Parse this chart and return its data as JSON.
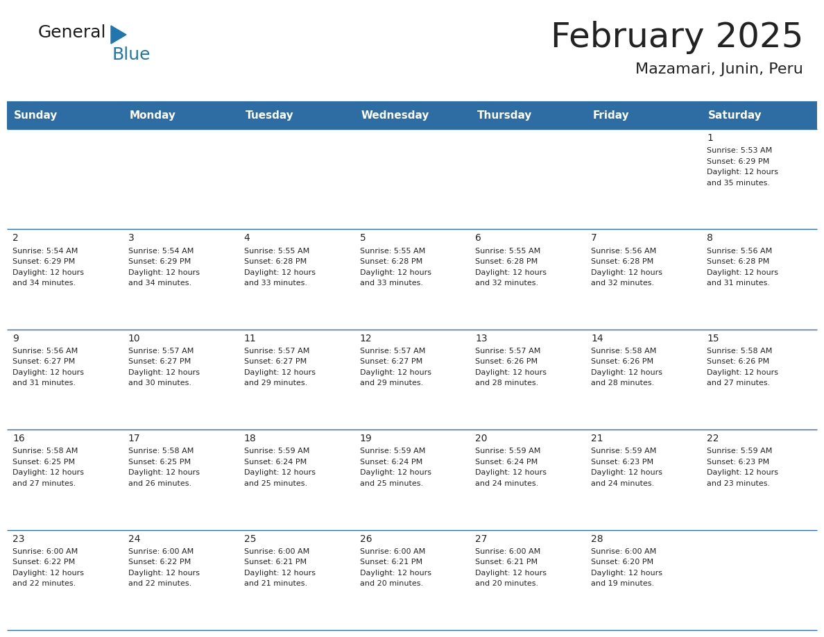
{
  "title": "February 2025",
  "subtitle": "Mazamari, Junin, Peru",
  "header_bg": "#2E6DA4",
  "header_text_color": "#FFFFFF",
  "border_color": "#2E6DA4",
  "day_headers": [
    "Sunday",
    "Monday",
    "Tuesday",
    "Wednesday",
    "Thursday",
    "Friday",
    "Saturday"
  ],
  "days": [
    {
      "day": 1,
      "col": 6,
      "row": 0,
      "sunrise": "5:53 AM",
      "sunset": "6:29 PM",
      "daylight": "12 hours and 35 minutes."
    },
    {
      "day": 2,
      "col": 0,
      "row": 1,
      "sunrise": "5:54 AM",
      "sunset": "6:29 PM",
      "daylight": "12 hours and 34 minutes."
    },
    {
      "day": 3,
      "col": 1,
      "row": 1,
      "sunrise": "5:54 AM",
      "sunset": "6:29 PM",
      "daylight": "12 hours and 34 minutes."
    },
    {
      "day": 4,
      "col": 2,
      "row": 1,
      "sunrise": "5:55 AM",
      "sunset": "6:28 PM",
      "daylight": "12 hours and 33 minutes."
    },
    {
      "day": 5,
      "col": 3,
      "row": 1,
      "sunrise": "5:55 AM",
      "sunset": "6:28 PM",
      "daylight": "12 hours and 33 minutes."
    },
    {
      "day": 6,
      "col": 4,
      "row": 1,
      "sunrise": "5:55 AM",
      "sunset": "6:28 PM",
      "daylight": "12 hours and 32 minutes."
    },
    {
      "day": 7,
      "col": 5,
      "row": 1,
      "sunrise": "5:56 AM",
      "sunset": "6:28 PM",
      "daylight": "12 hours and 32 minutes."
    },
    {
      "day": 8,
      "col": 6,
      "row": 1,
      "sunrise": "5:56 AM",
      "sunset": "6:28 PM",
      "daylight": "12 hours and 31 minutes."
    },
    {
      "day": 9,
      "col": 0,
      "row": 2,
      "sunrise": "5:56 AM",
      "sunset": "6:27 PM",
      "daylight": "12 hours and 31 minutes."
    },
    {
      "day": 10,
      "col": 1,
      "row": 2,
      "sunrise": "5:57 AM",
      "sunset": "6:27 PM",
      "daylight": "12 hours and 30 minutes."
    },
    {
      "day": 11,
      "col": 2,
      "row": 2,
      "sunrise": "5:57 AM",
      "sunset": "6:27 PM",
      "daylight": "12 hours and 29 minutes."
    },
    {
      "day": 12,
      "col": 3,
      "row": 2,
      "sunrise": "5:57 AM",
      "sunset": "6:27 PM",
      "daylight": "12 hours and 29 minutes."
    },
    {
      "day": 13,
      "col": 4,
      "row": 2,
      "sunrise": "5:57 AM",
      "sunset": "6:26 PM",
      "daylight": "12 hours and 28 minutes."
    },
    {
      "day": 14,
      "col": 5,
      "row": 2,
      "sunrise": "5:58 AM",
      "sunset": "6:26 PM",
      "daylight": "12 hours and 28 minutes."
    },
    {
      "day": 15,
      "col": 6,
      "row": 2,
      "sunrise": "5:58 AM",
      "sunset": "6:26 PM",
      "daylight": "12 hours and 27 minutes."
    },
    {
      "day": 16,
      "col": 0,
      "row": 3,
      "sunrise": "5:58 AM",
      "sunset": "6:25 PM",
      "daylight": "12 hours and 27 minutes."
    },
    {
      "day": 17,
      "col": 1,
      "row": 3,
      "sunrise": "5:58 AM",
      "sunset": "6:25 PM",
      "daylight": "12 hours and 26 minutes."
    },
    {
      "day": 18,
      "col": 2,
      "row": 3,
      "sunrise": "5:59 AM",
      "sunset": "6:24 PM",
      "daylight": "12 hours and 25 minutes."
    },
    {
      "day": 19,
      "col": 3,
      "row": 3,
      "sunrise": "5:59 AM",
      "sunset": "6:24 PM",
      "daylight": "12 hours and 25 minutes."
    },
    {
      "day": 20,
      "col": 4,
      "row": 3,
      "sunrise": "5:59 AM",
      "sunset": "6:24 PM",
      "daylight": "12 hours and 24 minutes."
    },
    {
      "day": 21,
      "col": 5,
      "row": 3,
      "sunrise": "5:59 AM",
      "sunset": "6:23 PM",
      "daylight": "12 hours and 24 minutes."
    },
    {
      "day": 22,
      "col": 6,
      "row": 3,
      "sunrise": "5:59 AM",
      "sunset": "6:23 PM",
      "daylight": "12 hours and 23 minutes."
    },
    {
      "day": 23,
      "col": 0,
      "row": 4,
      "sunrise": "6:00 AM",
      "sunset": "6:22 PM",
      "daylight": "12 hours and 22 minutes."
    },
    {
      "day": 24,
      "col": 1,
      "row": 4,
      "sunrise": "6:00 AM",
      "sunset": "6:22 PM",
      "daylight": "12 hours and 22 minutes."
    },
    {
      "day": 25,
      "col": 2,
      "row": 4,
      "sunrise": "6:00 AM",
      "sunset": "6:21 PM",
      "daylight": "12 hours and 21 minutes."
    },
    {
      "day": 26,
      "col": 3,
      "row": 4,
      "sunrise": "6:00 AM",
      "sunset": "6:21 PM",
      "daylight": "12 hours and 20 minutes."
    },
    {
      "day": 27,
      "col": 4,
      "row": 4,
      "sunrise": "6:00 AM",
      "sunset": "6:21 PM",
      "daylight": "12 hours and 20 minutes."
    },
    {
      "day": 28,
      "col": 5,
      "row": 4,
      "sunrise": "6:00 AM",
      "sunset": "6:20 PM",
      "daylight": "12 hours and 19 minutes."
    }
  ],
  "n_rows": 5,
  "n_cols": 7,
  "logo_text_general": "General",
  "logo_text_blue": "Blue",
  "logo_triangle_color": "#2176AE",
  "text_color_dark": "#222222",
  "grid_line_color": "#2E6DA4"
}
